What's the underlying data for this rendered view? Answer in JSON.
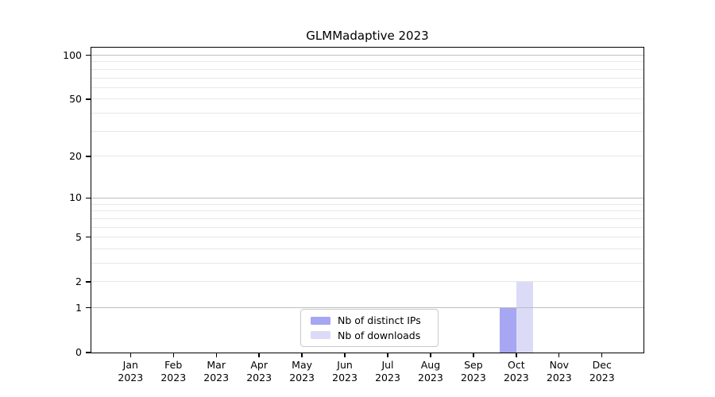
{
  "chart_data": {
    "type": "bar",
    "title": "GLMMadaptive 2023",
    "categories": [
      "Jan 2023",
      "Feb 2023",
      "Mar 2023",
      "Apr 2023",
      "May 2023",
      "Jun 2023",
      "Jul 2023",
      "Aug 2023",
      "Sep 2023",
      "Oct 2023",
      "Nov 2023",
      "Dec 2023"
    ],
    "series": [
      {
        "name": "Nb of distinct IPs",
        "color": "#a6a6f3",
        "values": [
          0,
          0,
          0,
          0,
          0,
          0,
          0,
          0,
          0,
          1,
          0,
          0
        ]
      },
      {
        "name": "Nb of downloads",
        "color": "#dbdbf8",
        "values": [
          0,
          0,
          0,
          0,
          0,
          0,
          0,
          0,
          0,
          2,
          0,
          0
        ]
      }
    ],
    "xlabel": "",
    "ylabel": "",
    "yscale": "log1p",
    "ylim": [
      0,
      113
    ],
    "yticks": [
      0,
      1,
      2,
      5,
      10,
      20,
      50,
      100
    ],
    "minor_gridlines": [
      2,
      3,
      4,
      5,
      6,
      7,
      8,
      9,
      20,
      30,
      40,
      50,
      60,
      70,
      80,
      90
    ],
    "major_gridlines": [
      1,
      10,
      100
    ],
    "grid": true,
    "legend_position": "lower center"
  },
  "colors": {
    "background": "#ffffff",
    "spine": "#000000",
    "grid_major": "#bdbdbd",
    "grid_minor": "#e7e7e7",
    "distinct_ips": "#a6a6f3",
    "downloads": "#dbdbf8"
  }
}
